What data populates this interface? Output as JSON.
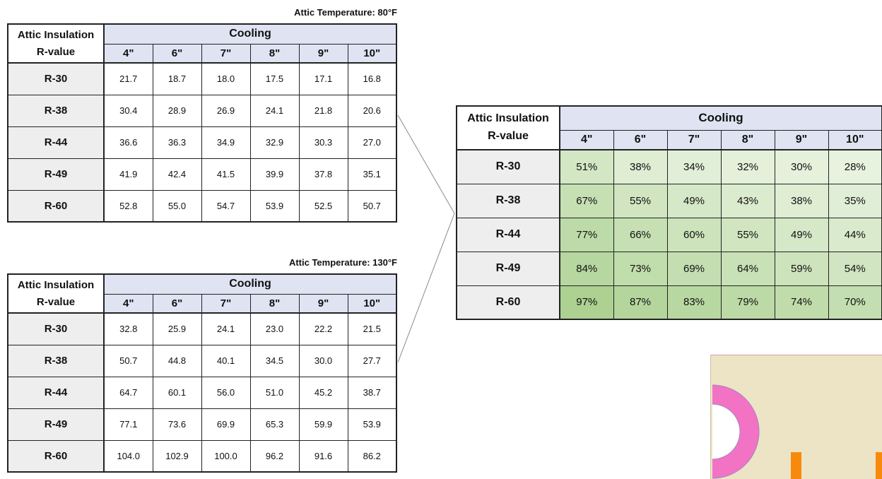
{
  "table_top": {
    "caption": "Attic Temperature: 80°F",
    "corner_line1": "Attic Insulation",
    "corner_line2": "R-value",
    "group_header": "Cooling",
    "sizes": [
      "4\"",
      "6\"",
      "7\"",
      "8\"",
      "9\"",
      "10\""
    ],
    "rows": [
      {
        "label": "R-30",
        "values": [
          "21.7",
          "18.7",
          "18.0",
          "17.5",
          "17.1",
          "16.8"
        ]
      },
      {
        "label": "R-38",
        "values": [
          "30.4",
          "28.9",
          "26.9",
          "24.1",
          "21.8",
          "20.6"
        ]
      },
      {
        "label": "R-44",
        "values": [
          "36.6",
          "36.3",
          "34.9",
          "32.9",
          "30.3",
          "27.0"
        ]
      },
      {
        "label": "R-49",
        "values": [
          "41.9",
          "42.4",
          "41.5",
          "39.9",
          "37.8",
          "35.1"
        ]
      },
      {
        "label": "R-60",
        "values": [
          "52.8",
          "55.0",
          "54.7",
          "53.9",
          "52.5",
          "50.7"
        ]
      }
    ]
  },
  "table_bottom": {
    "caption": "Attic Temperature: 130°F",
    "corner_line1": "Attic Insulation",
    "corner_line2": "R-value",
    "group_header": "Cooling",
    "sizes": [
      "4\"",
      "6\"",
      "7\"",
      "8\"",
      "9\"",
      "10\""
    ],
    "rows": [
      {
        "label": "R-30",
        "values": [
          "32.8",
          "25.9",
          "24.1",
          "23.0",
          "22.2",
          "21.5"
        ]
      },
      {
        "label": "R-38",
        "values": [
          "50.7",
          "44.8",
          "40.1",
          "34.5",
          "30.0",
          "27.7"
        ]
      },
      {
        "label": "R-44",
        "values": [
          "64.7",
          "60.1",
          "56.0",
          "51.0",
          "45.2",
          "38.7"
        ]
      },
      {
        "label": "R-49",
        "values": [
          "77.1",
          "73.6",
          "69.9",
          "65.3",
          "59.9",
          "53.9"
        ]
      },
      {
        "label": "R-60",
        "values": [
          "104.0",
          "102.9",
          "100.0",
          "96.2",
          "91.6",
          "86.2"
        ]
      }
    ]
  },
  "table_right": {
    "corner_line1": "Attic Insulation",
    "corner_line2": "R-value",
    "group_header": "Cooling",
    "sizes": [
      "4\"",
      "6\"",
      "7\"",
      "8\"",
      "9\"",
      "10\""
    ],
    "rows": [
      {
        "label": "R-30",
        "values": [
          "51%",
          "38%",
          "34%",
          "32%",
          "30%",
          "28%"
        ]
      },
      {
        "label": "R-38",
        "values": [
          "67%",
          "55%",
          "49%",
          "43%",
          "38%",
          "35%"
        ]
      },
      {
        "label": "R-44",
        "values": [
          "77%",
          "66%",
          "60%",
          "55%",
          "49%",
          "44%"
        ]
      },
      {
        "label": "R-49",
        "values": [
          "84%",
          "73%",
          "69%",
          "64%",
          "59%",
          "54%"
        ]
      },
      {
        "label": "R-60",
        "values": [
          "97%",
          "87%",
          "83%",
          "79%",
          "74%",
          "70%"
        ]
      }
    ]
  },
  "colors": {
    "header_fill": "#dfe3f2",
    "label_fill": "#eeeeee",
    "heat_low": "#eaf3e2",
    "heat_high": "#a9d08e",
    "diagram_bg": "#ece4c5",
    "ring": "#f273c3",
    "post": "#f78a0d"
  }
}
